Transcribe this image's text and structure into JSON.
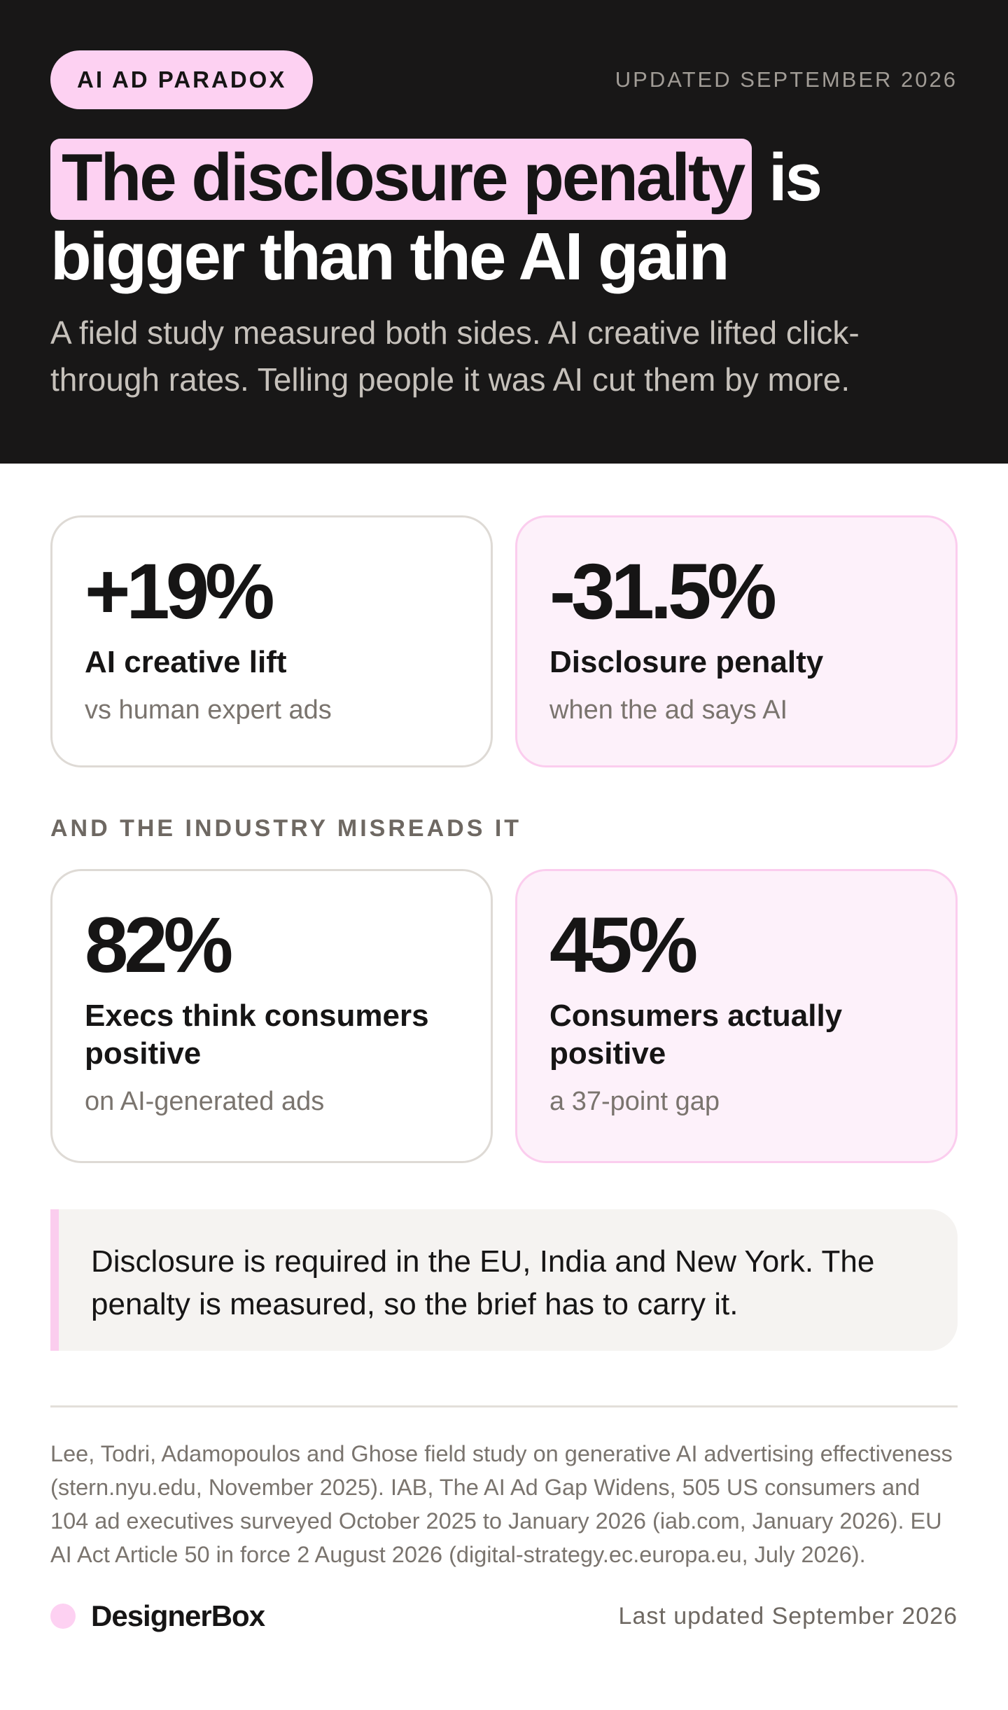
{
  "header": {
    "tag": "AI AD PARADOX",
    "updated": "UPDATED SEPTEMBER 2026",
    "headline_highlight": "The disclosure penalty",
    "headline_rest_line1": " is",
    "headline_line2": "bigger than the AI gain",
    "lede": "A field study measured both sides. AI creative lifted click-through rates. Telling people it was AI cut them by more."
  },
  "stats_top": [
    {
      "value": "+19%",
      "label": "AI creative lift",
      "sub": "vs human expert ads"
    },
    {
      "value": "-31.5%",
      "label": "Disclosure penalty",
      "sub": "when the ad says AI"
    }
  ],
  "section_label": "AND THE INDUSTRY MISREADS IT",
  "stats_bottom": [
    {
      "value": "82%",
      "label": "Execs think consumers positive",
      "sub": "on AI-generated ads"
    },
    {
      "value": "45%",
      "label": "Consumers actually positive",
      "sub": "a 37-point gap"
    }
  ],
  "callout": "Disclosure is required in the EU, India and New York. The penalty is measured, so the brief has to carry it.",
  "sources": "Lee, Todri, Adamopoulos and Ghose field study on generative AI advertising effectiveness (stern.nyu.edu, November 2025). IAB, The AI Ad Gap Widens, 505 US consumers and 104 ad executives surveyed October 2025 to January 2026 (iab.com, January 2026). EU AI Act Article 50 in force 2 August 2026 (digital-strategy.ec.europa.eu, July 2026).",
  "footer": {
    "brand": "DesignerBox",
    "updated": "Last updated September 2026"
  },
  "colors": {
    "header_bg": "#181717",
    "accent_pink": "#fdd1f2",
    "card_pink_bg": "#fdf1fa",
    "callout_bg": "#f5f3f1"
  }
}
